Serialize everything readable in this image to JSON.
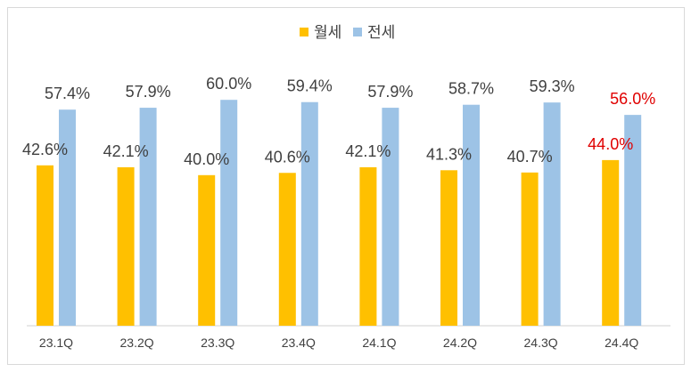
{
  "chart_data": {
    "type": "bar",
    "categories": [
      "23.1Q",
      "23.2Q",
      "23.3Q",
      "23.4Q",
      "24.1Q",
      "24.2Q",
      "24.3Q",
      "24.4Q"
    ],
    "series": [
      {
        "name": "월세",
        "color": "#FFC000",
        "values": [
          42.6,
          42.1,
          40.0,
          40.6,
          42.1,
          41.3,
          40.7,
          44.0
        ],
        "labels": [
          "42.6%",
          "42.1%",
          "40.0%",
          "40.6%",
          "42.1%",
          "41.3%",
          "40.7%",
          "44.0%"
        ]
      },
      {
        "name": "전세",
        "color": "#9DC3E6",
        "values": [
          57.4,
          57.9,
          60.0,
          59.4,
          57.9,
          58.7,
          59.3,
          56.0
        ],
        "labels": [
          "57.4%",
          "57.9%",
          "60.0%",
          "59.4%",
          "57.9%",
          "58.7%",
          "59.3%",
          "56.0%"
        ]
      }
    ],
    "highlight_category": "24.4Q",
    "highlight_label_color": "#E00000",
    "legend_position": "top-center",
    "grid": false
  },
  "legend": {
    "monthly": "월세",
    "jeonse": "전세"
  }
}
